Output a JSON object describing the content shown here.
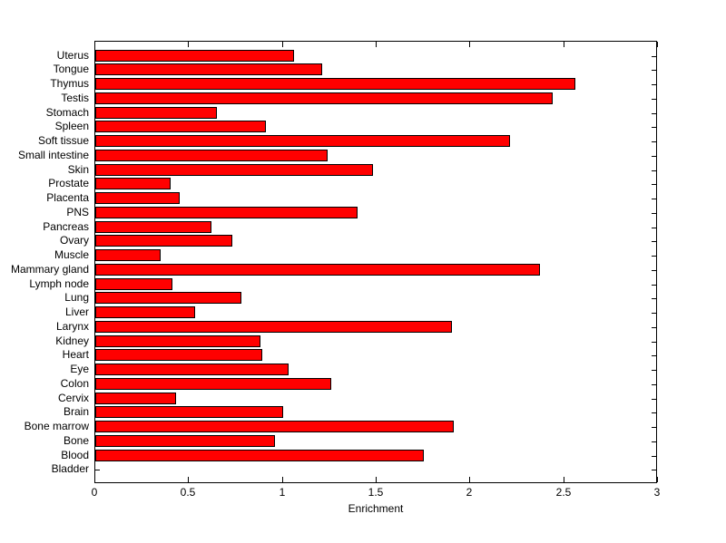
{
  "figure": {
    "background": "#ffffff"
  },
  "chart_data": {
    "type": "bar",
    "orientation": "horizontal",
    "title": "",
    "xlabel": "Enrichment",
    "ylabel": "",
    "xlim": [
      0,
      3
    ],
    "xtick_values": [
      0,
      0.5,
      1,
      1.5,
      2,
      2.5,
      3
    ],
    "xtick_labels": [
      "0",
      "0.5",
      "1",
      "1.5",
      "2",
      "2.5",
      "3"
    ],
    "grid": false,
    "legend": null,
    "bar_color": "#ff0000",
    "bar_edge_color": "#000000",
    "axis_color": "#000000",
    "categories": [
      "Uterus",
      "Tongue",
      "Thymus",
      "Testis",
      "Stomach",
      "Spleen",
      "Soft tissue",
      "Small intestine",
      "Skin",
      "Prostate",
      "Placenta",
      "PNS",
      "Pancreas",
      "Ovary",
      "Muscle",
      "Mammary gland",
      "Lymph node",
      "Lung",
      "Liver",
      "Larynx",
      "Kidney",
      "Heart",
      "Eye",
      "Colon",
      "Cervix",
      "Brain",
      "Bone marrow",
      "Bone",
      "Blood",
      "Bladder"
    ],
    "values": [
      1.06,
      1.21,
      2.56,
      2.44,
      0.65,
      0.91,
      2.21,
      1.24,
      1.48,
      0.4,
      0.45,
      1.4,
      0.62,
      0.73,
      0.35,
      2.37,
      0.41,
      0.78,
      0.53,
      1.9,
      0.88,
      0.89,
      1.03,
      1.26,
      0.43,
      1.0,
      1.91,
      0.96,
      1.75,
      0
    ]
  }
}
